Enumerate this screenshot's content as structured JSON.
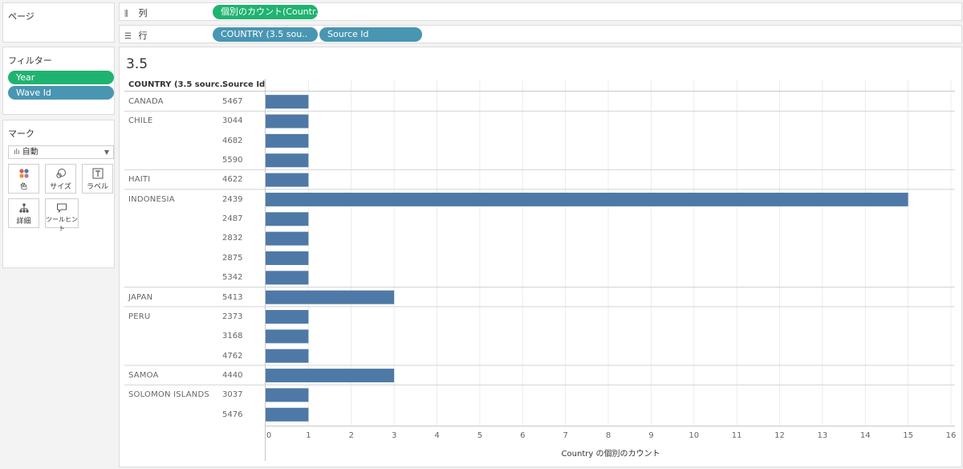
{
  "pages_panel": {
    "title": "ページ"
  },
  "columns_shelf": {
    "label": "列",
    "icon": "columns-icon",
    "pills": [
      "個別のカウント(Countr.."
    ]
  },
  "rows_shelf": {
    "label": "行",
    "icon": "rows-icon",
    "pills": [
      "COUNTRY (3.5 sou..",
      "Source Id"
    ]
  },
  "filters_panel": {
    "title": "フィルター",
    "items": [
      "Year",
      "Wave Id"
    ]
  },
  "marks_panel": {
    "title": "マーク",
    "mark_type": "自動",
    "buttons": [
      {
        "label": "色",
        "icon": "color-icon"
      },
      {
        "label": "サイズ",
        "icon": "size-icon"
      },
      {
        "label": "ラベル",
        "icon": "label-icon"
      },
      {
        "label": "詳細",
        "icon": "detail-icon"
      },
      {
        "label": "ツールヒント",
        "icon": "tooltip-icon"
      }
    ]
  },
  "colors": {
    "green_pill": "#1fb371",
    "blue_pill": "#4996b2",
    "bar": "#4e79a7"
  },
  "sheet": {
    "title": "3.5",
    "headers": {
      "country": "COUNTRY (3.5 sourc..",
      "source": "Source Id"
    }
  },
  "chart_data": {
    "type": "bar",
    "orientation": "horizontal",
    "title": "3.5",
    "xlabel": "Country の個別のカウント",
    "xlim": [
      0,
      16
    ],
    "xticks": [
      0,
      1,
      2,
      3,
      4,
      5,
      6,
      7,
      8,
      9,
      10,
      11,
      12,
      13,
      14,
      15,
      16
    ],
    "grid": true,
    "groups": [
      {
        "country": "CANADA",
        "rows": [
          {
            "source_id": "5467",
            "value": 1
          }
        ]
      },
      {
        "country": "CHILE",
        "rows": [
          {
            "source_id": "3044",
            "value": 1
          },
          {
            "source_id": "4682",
            "value": 1
          },
          {
            "source_id": "5590",
            "value": 1
          }
        ]
      },
      {
        "country": "HAITI",
        "rows": [
          {
            "source_id": "4622",
            "value": 1
          }
        ]
      },
      {
        "country": "INDONESIA",
        "rows": [
          {
            "source_id": "2439",
            "value": 15
          },
          {
            "source_id": "2487",
            "value": 1
          },
          {
            "source_id": "2832",
            "value": 1
          },
          {
            "source_id": "2875",
            "value": 1
          },
          {
            "source_id": "5342",
            "value": 1
          }
        ]
      },
      {
        "country": "JAPAN",
        "rows": [
          {
            "source_id": "5413",
            "value": 3
          }
        ]
      },
      {
        "country": "PERU",
        "rows": [
          {
            "source_id": "2373",
            "value": 1
          },
          {
            "source_id": "3168",
            "value": 1
          },
          {
            "source_id": "4762",
            "value": 1
          }
        ]
      },
      {
        "country": "SAMOA",
        "rows": [
          {
            "source_id": "4440",
            "value": 3
          }
        ]
      },
      {
        "country": "SOLOMON ISLANDS",
        "rows": [
          {
            "source_id": "3037",
            "value": 1
          },
          {
            "source_id": "5476",
            "value": 1
          }
        ]
      }
    ]
  }
}
